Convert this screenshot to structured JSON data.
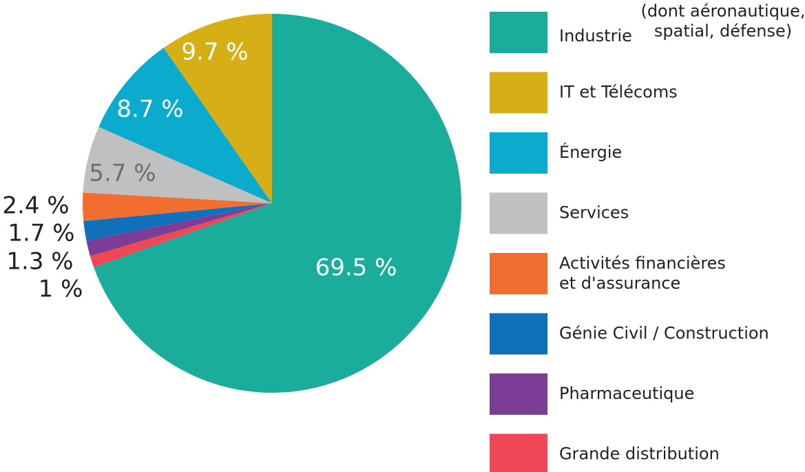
{
  "chart_data": {
    "type": "pie",
    "categories": [
      "Industrie",
      "IT et Télécoms",
      "Énergie",
      "Services",
      "Activités financières\net d'assurance",
      "Génie Civil / Construction",
      "Pharmaceutique",
      "Grande distribution"
    ],
    "values": [
      69.5,
      9.7,
      8.7,
      5.7,
      2.4,
      1.7,
      1.3,
      1
    ],
    "value_labels": [
      "69.5 %",
      "9.7 %",
      "8.7 %",
      "5.7 %",
      "2.4 %",
      "1.7 %",
      "1.3 %",
      "1 %"
    ],
    "colors": [
      "#1aad9c",
      "#d6ae16",
      "#0aabcc",
      "#bec0c2",
      "#f26e30",
      "#1170ba",
      "#7b3d96",
      "#ef4755"
    ],
    "annotation": "(dont aéronautique,\nspatial, défense)"
  }
}
